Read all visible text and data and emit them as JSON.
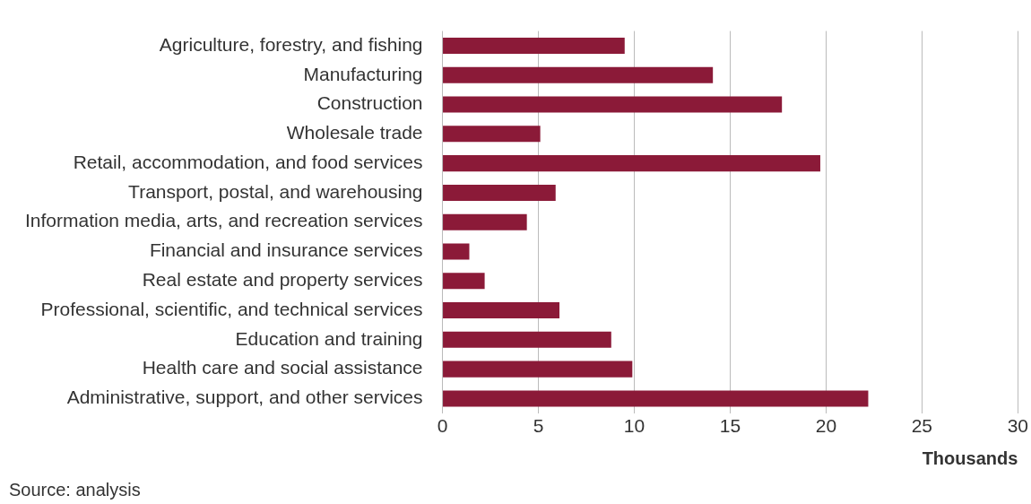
{
  "chart_data": {
    "type": "bar",
    "orientation": "horizontal",
    "categories": [
      "Agriculture, forestry, and fishing",
      "Manufacturing",
      "Construction",
      "Wholesale trade",
      "Retail, accommodation, and food services",
      "Transport, postal, and warehousing",
      "Information media, arts, and recreation services",
      "Financial and insurance services",
      "Real estate and property services",
      "Professional, scientific, and technical services",
      "Education and training",
      "Health care and social assistance",
      "Administrative, support, and other services"
    ],
    "values": [
      9.5,
      14.1,
      17.7,
      5.1,
      19.7,
      5.9,
      4.4,
      1.4,
      2.2,
      6.1,
      8.8,
      9.9,
      22.2
    ],
    "color": "#8b1a38",
    "xlim": [
      0,
      30
    ],
    "xticks": [
      0,
      5,
      10,
      15,
      20,
      25,
      30
    ],
    "xlabel": "Thousands",
    "grid": "x",
    "legend": false,
    "annotations": [
      "Source: analysis"
    ]
  }
}
